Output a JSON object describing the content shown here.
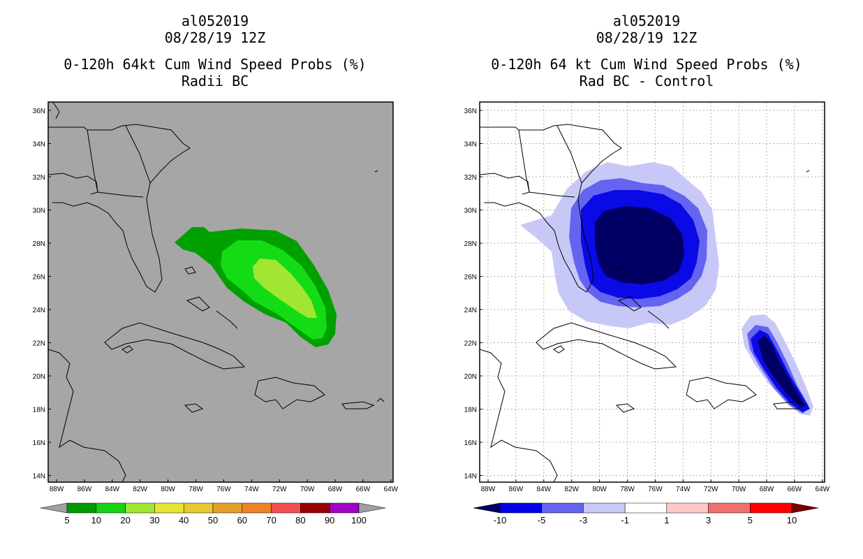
{
  "left_panel": {
    "title_lines": [
      "al052019",
      "08/28/19 12Z",
      "0-120h 64kt Cum Wind Speed Probs (%)",
      "Radii BC"
    ],
    "colorbar": {
      "labels": [
        "5",
        "10",
        "20",
        "30",
        "40",
        "50",
        "60",
        "70",
        "80",
        "90",
        "100"
      ],
      "colors": [
        "#a0a0a0",
        "#009a00",
        "#14d214",
        "#a0e632",
        "#e6e632",
        "#e6c832",
        "#e6a028",
        "#f08228",
        "#f05050",
        "#960000",
        "#a000c8",
        "#a0a0a0"
      ]
    }
  },
  "right_panel": {
    "title_lines": [
      "al052019",
      "08/28/19 12Z",
      "0-120h 64 kt Cum Wind Speed Probs (%)",
      "Rad BC - Control"
    ],
    "colorbar": {
      "labels": [
        "-10",
        "-5",
        "-3",
        "-1",
        "1",
        "3",
        "5",
        "10"
      ],
      "colors": [
        "#000064",
        "#0000e6",
        "#6464f0",
        "#c8c8f8",
        "#ffffff",
        "#ffc8c8",
        "#f07070",
        "#ff0000",
        "#780000"
      ]
    }
  },
  "axes": {
    "lat_labels": [
      "36N",
      "34N",
      "32N",
      "30N",
      "28N",
      "26N",
      "24N",
      "22N",
      "20N",
      "18N",
      "16N",
      "14N"
    ],
    "lon_labels": [
      "88W",
      "86W",
      "84W",
      "82W",
      "80W",
      "78W",
      "76W",
      "74W",
      "72W",
      "70W",
      "68W",
      "66W",
      "64W"
    ]
  },
  "colors": {
    "land_bg_left": "#a6a6a6",
    "green_dark": "#00a000",
    "green_mid": "#14dc14",
    "green_light": "#a0e632",
    "blue_navy": "#000064",
    "blue_mid": "#0a0ae6",
    "blue_light": "#6464f0",
    "blue_pale": "#c8c8f8"
  }
}
